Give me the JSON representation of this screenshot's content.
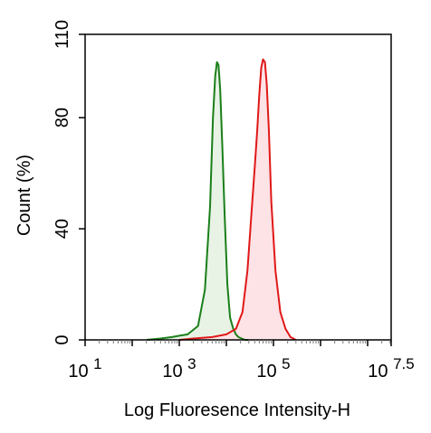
{
  "chart_data": {
    "type": "area",
    "xlabel": "Log Fluoresence Intensity-H",
    "ylabel": "Count  (%)",
    "x_scale": "log10",
    "xlim": [
      10,
      31622776.6
    ],
    "ylim": [
      0,
      110
    ],
    "y_ticks": [
      0,
      40,
      80,
      110
    ],
    "x_ticks": [
      {
        "value": 10,
        "base": "10",
        "exp": "1"
      },
      {
        "value": 1000,
        "base": "10",
        "exp": "3"
      },
      {
        "value": 100000,
        "base": "10",
        "exp": "5"
      },
      {
        "value": 31622776.6,
        "base": "10",
        "exp": "7.5"
      }
    ],
    "grid": false,
    "series": [
      {
        "color": "#1a7f1a",
        "fill": "#e8f3e6",
        "x": [
          200,
          400,
          700,
          1000,
          1500,
          2500,
          3500,
          4500,
          5200,
          5800,
          6300,
          6800,
          7400,
          8200,
          9200,
          10500,
          12000,
          14000,
          16000,
          18000,
          21000,
          25000,
          30000
        ],
        "y": [
          0,
          0.5,
          1,
          1.5,
          2,
          5,
          18,
          48,
          80,
          95,
          100,
          99,
          90,
          70,
          45,
          20,
          8,
          4,
          2,
          1,
          0.5,
          0,
          0
        ]
      },
      {
        "color": "#e01818",
        "fill": "#fde3e6",
        "x": [
          1000,
          2000,
          5000,
          10000,
          16000,
          22000,
          28000,
          34000,
          40000,
          45000,
          50000,
          55000,
          60000,
          66000,
          72000,
          80000,
          90000,
          110000,
          140000,
          180000,
          230000,
          300000
        ],
        "y": [
          0,
          0.5,
          1,
          2,
          4,
          10,
          25,
          45,
          62,
          75,
          88,
          98,
          101,
          100,
          92,
          75,
          50,
          25,
          10,
          4,
          1,
          0
        ]
      }
    ]
  }
}
